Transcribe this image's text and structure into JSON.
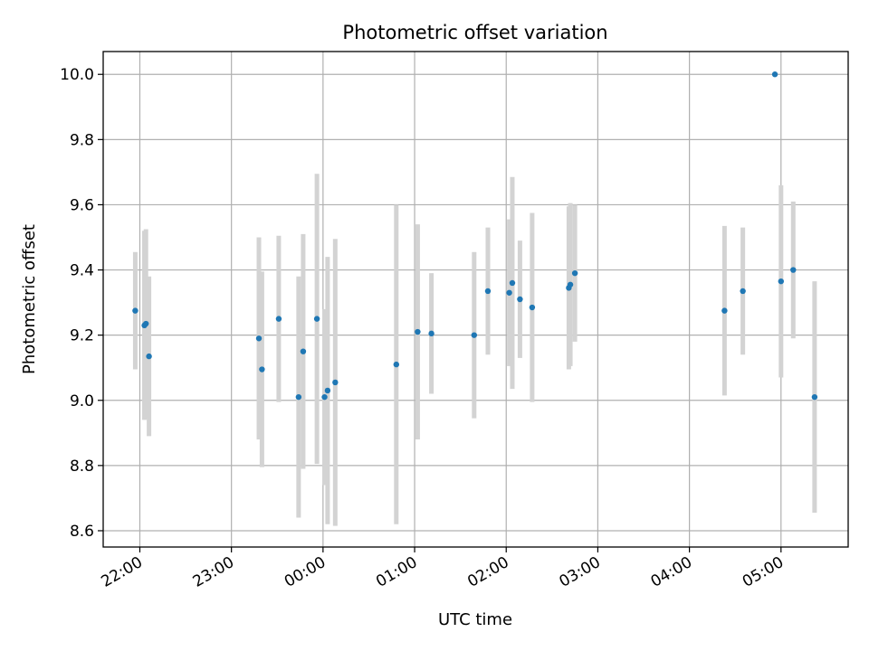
{
  "chart_data": {
    "type": "scatter",
    "title": "Photometric offset variation",
    "xlabel": "UTC time",
    "ylabel": "Photometric offset",
    "x_is_time": true,
    "x_ticks": [
      "22:00",
      "23:00",
      "00:00",
      "01:00",
      "02:00",
      "03:00",
      "04:00",
      "05:00"
    ],
    "y_ticks": [
      "8.6",
      "8.8",
      "9.0",
      "9.2",
      "9.4",
      "9.6",
      "9.8",
      "10.0"
    ],
    "xlim": [
      "21:36",
      "05:44"
    ],
    "ylim": [
      8.55,
      10.07
    ],
    "grid": true,
    "marker_color": "#1f77b4",
    "errorbar_color": "#d3d3d3",
    "points": [
      {
        "t": "21:57",
        "y": 9.275,
        "err": 0.18
      },
      {
        "t": "22:03",
        "y": 9.23,
        "err": 0.29
      },
      {
        "t": "22:04",
        "y": 9.235,
        "err": 0.29
      },
      {
        "t": "22:06",
        "y": 9.135,
        "err": 0.245
      },
      {
        "t": "23:18",
        "y": 9.19,
        "err": 0.31
      },
      {
        "t": "23:20",
        "y": 9.095,
        "err": 0.3
      },
      {
        "t": "23:31",
        "y": 9.25,
        "err": 0.255
      },
      {
        "t": "23:44",
        "y": 9.01,
        "err": 0.37
      },
      {
        "t": "23:47",
        "y": 9.15,
        "err": 0.36
      },
      {
        "t": "23:56",
        "y": 9.25,
        "err": 0.445
      },
      {
        "t": "00:01",
        "y": 9.01,
        "err": 0.27
      },
      {
        "t": "00:03",
        "y": 9.03,
        "err": 0.41
      },
      {
        "t": "00:08",
        "y": 9.055,
        "err": 0.44
      },
      {
        "t": "00:48",
        "y": 9.11,
        "err": 0.49
      },
      {
        "t": "01:02",
        "y": 9.21,
        "err": 0.33
      },
      {
        "t": "01:11",
        "y": 9.205,
        "err": 0.185
      },
      {
        "t": "01:39",
        "y": 9.2,
        "err": 0.255
      },
      {
        "t": "01:48",
        "y": 9.335,
        "err": 0.195
      },
      {
        "t": "02:02",
        "y": 9.33,
        "err": 0.225
      },
      {
        "t": "02:04",
        "y": 9.36,
        "err": 0.325
      },
      {
        "t": "02:09",
        "y": 9.31,
        "err": 0.18
      },
      {
        "t": "02:17",
        "y": 9.285,
        "err": 0.29
      },
      {
        "t": "02:41",
        "y": 9.345,
        "err": 0.25
      },
      {
        "t": "02:42",
        "y": 9.355,
        "err": 0.25
      },
      {
        "t": "02:45",
        "y": 9.39,
        "err": 0.21
      },
      {
        "t": "04:23",
        "y": 9.275,
        "err": 0.26
      },
      {
        "t": "04:35",
        "y": 9.335,
        "err": 0.195
      },
      {
        "t": "04:56",
        "y": 10.0,
        "err": 0.0
      },
      {
        "t": "05:00",
        "y": 9.365,
        "err": 0.295
      },
      {
        "t": "05:08",
        "y": 9.4,
        "err": 0.21
      },
      {
        "t": "05:22",
        "y": 9.01,
        "err": 0.355
      }
    ]
  }
}
